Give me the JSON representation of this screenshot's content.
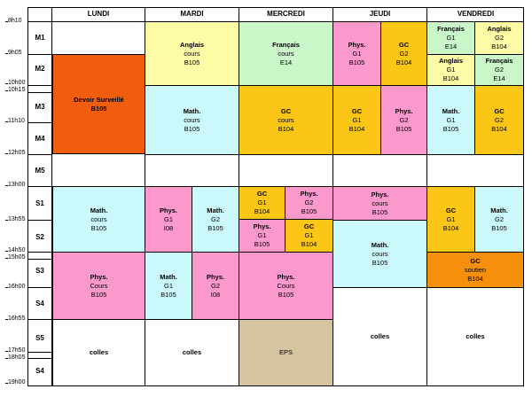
{
  "colors": {
    "yellow": "#fdfba5",
    "green": "#c9f7c8",
    "pink": "#fb98cc",
    "gold": "#fbc616",
    "cyan": "#cbf9fb",
    "orange_red": "#f05d0c",
    "orange": "#f6900c",
    "tan": "#d4c4a0"
  },
  "days": [
    "LUNDI",
    "MARDI",
    "MERCREDI",
    "JEUDI",
    "VENDREDI"
  ],
  "times": [
    "8h10",
    "9h05",
    "10h00",
    "10h15",
    "11h10",
    "12h05",
    "13h00",
    "13h55",
    "14h50",
    "15h05",
    "16h00",
    "16h55",
    "17h50",
    "18h05",
    "19h00"
  ],
  "slots": [
    "M1",
    "M2",
    "M3",
    "M4",
    "M5",
    "S1",
    "S2",
    "S3",
    "S4",
    "S5",
    "S4"
  ],
  "cells": {
    "lun_ds": {
      "title": "Devoir Surveillé",
      "l2": "B105",
      "l3": ""
    },
    "lun_math": {
      "title": "Math.",
      "l2": "cours",
      "l3": "B105"
    },
    "lun_phys": {
      "title": "Phys.",
      "l2": "Cours",
      "l3": "B105"
    },
    "lun_colles": {
      "title": "colles",
      "l2": "",
      "l3": ""
    },
    "mar_ang": {
      "title": "Anglais",
      "l2": "cours",
      "l3": "B105"
    },
    "mar_math": {
      "title": "Math.",
      "l2": "cours",
      "l3": "B105"
    },
    "mar_phys1": {
      "title": "Phys.",
      "l2": "G1",
      "l3": "I08"
    },
    "mar_math2": {
      "title": "Math.",
      "l2": "G2",
      "l3": "B105"
    },
    "mar_math3": {
      "title": "Math.",
      "l2": "G1",
      "l3": "B105"
    },
    "mar_phys2": {
      "title": "Phys.",
      "l2": "G2",
      "l3": "I08"
    },
    "mar_colles": {
      "title": "colles",
      "l2": "",
      "l3": ""
    },
    "mer_fr": {
      "title": "Français",
      "l2": "cours",
      "l3": "E14"
    },
    "mer_gc": {
      "title": "GC",
      "l2": "cours",
      "l3": "B104"
    },
    "mer_gc1": {
      "title": "GC",
      "l2": "G1",
      "l3": "B104"
    },
    "mer_phys1": {
      "title": "Phys.",
      "l2": "G2",
      "l3": "B105"
    },
    "mer_phys2": {
      "title": "Phys.",
      "l2": "G1",
      "l3": "B105"
    },
    "mer_gc2": {
      "title": "GC",
      "l2": "G1",
      "l3": "B104"
    },
    "mer_phys3": {
      "title": "Phys.",
      "l2": "Cours",
      "l3": "B105"
    },
    "mer_eps": {
      "title": "EPS",
      "l2": "",
      "l3": ""
    },
    "jeu_phys1": {
      "title": "Phys.",
      "l2": "G1",
      "l3": "B105"
    },
    "jeu_gc1": {
      "title": "GC",
      "l2": "G2",
      "l3": "B104"
    },
    "jeu_gc2": {
      "title": "GC",
      "l2": "G1",
      "l3": "B104"
    },
    "jeu_phys2": {
      "title": "Phys.",
      "l2": "G2",
      "l3": "B105"
    },
    "jeu_phys3": {
      "title": "Phys.",
      "l2": "cours",
      "l3": "B105"
    },
    "jeu_math": {
      "title": "Math.",
      "l2": "cours",
      "l3": "B105"
    },
    "jeu_colles": {
      "title": "colles",
      "l2": "",
      "l3": ""
    },
    "ven_fr1": {
      "title": "Français",
      "l2": "G1",
      "l3": "E14"
    },
    "ven_ang1": {
      "title": "Anglais",
      "l2": "G2",
      "l3": "B104"
    },
    "ven_ang2": {
      "title": "Anglais",
      "l2": "G1",
      "l3": "B104"
    },
    "ven_fr2": {
      "title": "Français",
      "l2": "G2",
      "l3": "E14"
    },
    "ven_math1": {
      "title": "Math.",
      "l2": "G1",
      "l3": "B105"
    },
    "ven_gc1": {
      "title": "GC",
      "l2": "G2",
      "l3": "B104"
    },
    "ven_gc2": {
      "title": "GC",
      "l2": "G1",
      "l3": "B104"
    },
    "ven_math2": {
      "title": "Math.",
      "l2": "G2",
      "l3": "B105"
    },
    "ven_gcs": {
      "title": "GC",
      "l2": "soutien",
      "l3": "B104"
    },
    "ven_colles": {
      "title": "colles",
      "l2": "",
      "l3": ""
    }
  }
}
